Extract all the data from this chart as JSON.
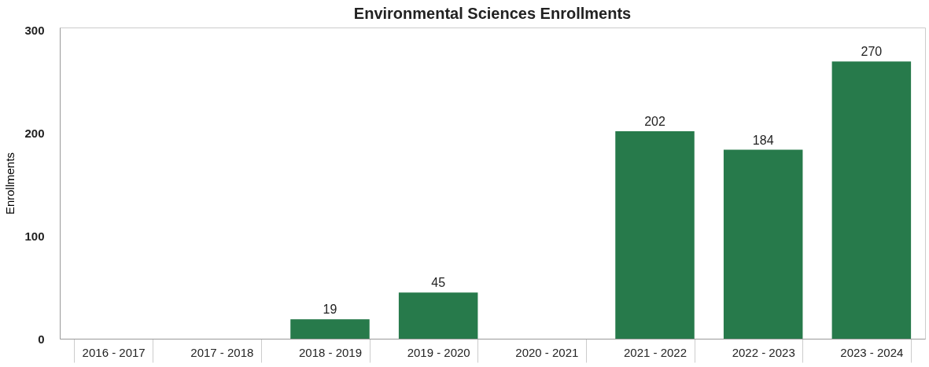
{
  "chart_data": {
    "type": "bar",
    "title": "Environmental Sciences Enrollments",
    "ylabel": "Enrollments",
    "categories": [
      "2016 - 2017",
      "2017 - 2018",
      "2018 - 2019",
      "2019 - 2020",
      "2020 - 2021",
      "2021 - 2022",
      "2022 - 2023",
      "2023 - 2024"
    ],
    "values": [
      null,
      null,
      19,
      45,
      null,
      202,
      184,
      270
    ],
    "color": "#277a4b",
    "ylim": [
      0,
      303
    ],
    "yticks": [
      0,
      100,
      200,
      300
    ],
    "grid": false,
    "data_labels": true
  }
}
